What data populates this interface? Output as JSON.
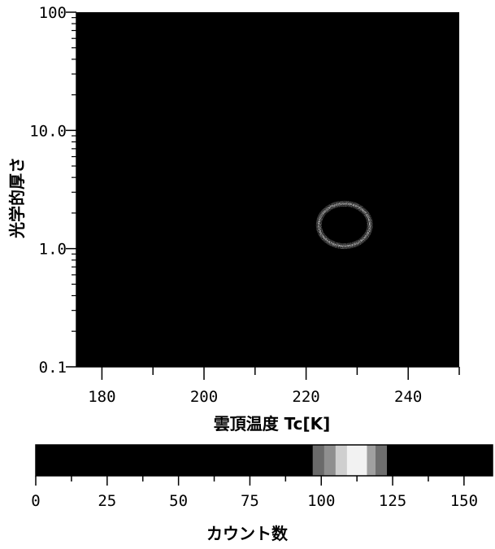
{
  "chart_data": [
    {
      "type": "heatmap",
      "xlabel": "雲頂温度 Tc[K]",
      "ylabel": "光学的厚さ",
      "xlim": [
        175,
        250
      ],
      "ylim": [
        0.1,
        100
      ],
      "yscale": "log",
      "x_ticks": [
        180,
        200,
        220,
        240
      ],
      "x_tick_labels": [
        "180",
        "200",
        "220",
        "240"
      ],
      "y_ticks": [
        0.1,
        1.0,
        10.0,
        100
      ],
      "y_tick_labels": [
        "0.1",
        "1.0",
        "10.0",
        "100"
      ],
      "background_color": "#000000",
      "features": [
        {
          "shape": "ring",
          "center_x": 227.5,
          "center_y": 1.6,
          "x_half_width": 5.0,
          "y_range": [
            1.05,
            2.4
          ],
          "level": 105
        }
      ]
    },
    {
      "type": "colorbar",
      "xlabel": "カウント数",
      "range": [
        0,
        160
      ],
      "ticks": [
        0,
        25,
        50,
        75,
        100,
        125,
        150
      ],
      "tick_labels": [
        "0",
        "25",
        "50",
        "75",
        "100",
        "125",
        "150"
      ],
      "bands": [
        {
          "from": 0,
          "to": 97,
          "color": "#000000"
        },
        {
          "from": 97,
          "to": 101,
          "color": "#6a6a6a"
        },
        {
          "from": 101,
          "to": 105,
          "color": "#8f8f8f"
        },
        {
          "from": 105,
          "to": 109,
          "color": "#cfcfcf"
        },
        {
          "from": 109,
          "to": 116,
          "color": "#f2f2f2"
        },
        {
          "from": 116,
          "to": 119,
          "color": "#a0a0a0"
        },
        {
          "from": 119,
          "to": 123,
          "color": "#6e6e6e"
        },
        {
          "from": 123,
          "to": 160,
          "color": "#000000"
        }
      ]
    }
  ]
}
